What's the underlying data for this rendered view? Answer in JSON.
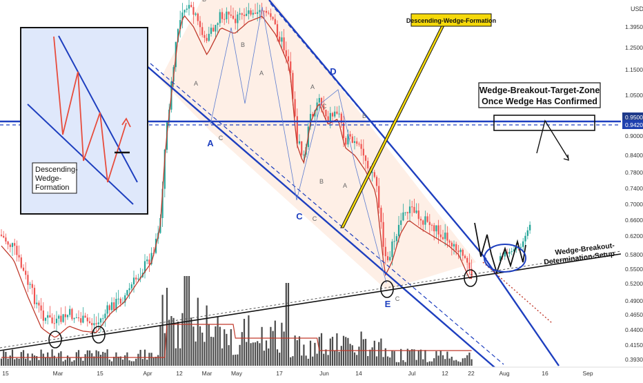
{
  "chart_data": {
    "type": "candlestick",
    "symbol_currency": "USD",
    "y_scale": "log",
    "ylim": [
      0.385,
      1.62
    ],
    "price_ticks": [
      "1.3950",
      "1.2500",
      "1.1500",
      "1.0500",
      "0.9500",
      "0.9420",
      "0.9000",
      "0.8400",
      "0.7800",
      "0.7400",
      "0.7000",
      "0.6600",
      "0.6200",
      "0.5800",
      "0.5500",
      "0.5200",
      "0.4900",
      "0.4650",
      "0.4400",
      "0.4150",
      "0.3930"
    ],
    "highlighted_levels": [
      {
        "label": "0.9500",
        "value": 0.95,
        "color": "#1e3a8a"
      },
      {
        "label": "0.9420",
        "value": 0.942,
        "color": "#1e40af"
      }
    ],
    "time_ticks": [
      "15",
      "Mar",
      "15",
      "Apr",
      "12",
      "Mar",
      "May",
      "17",
      "Jun",
      "14",
      "Jul",
      "12",
      "22",
      "Aug",
      "16",
      "Sep"
    ],
    "annotations": {
      "target_zone": "Wedge-Breakout-Target-Zone",
      "target_zone_line2": "Once Wedge Has Confirmed",
      "formation_label": "Descending-Wedge-Formation",
      "determination_label": "Wedge-Breakout-",
      "determination_label2": "Determination-Setup",
      "inset_label_1": "Descending-",
      "inset_label_2": "Wedge-",
      "inset_label_3": "Formation",
      "wave_labels": [
        "A",
        "B",
        "C",
        "D",
        "E"
      ],
      "small_labels": [
        "A",
        "B",
        "C"
      ]
    },
    "colors": {
      "up_candle": "#26a69a",
      "down_candle": "#ef5350",
      "moving_average": "#c0392b",
      "wedge_lines": "#1e3fbf",
      "wedge_fill": "#fde8dc",
      "volume": "#2b2b2b",
      "inset_zigzag": "#e74c3c",
      "formation_callout": "#f5d90a"
    }
  }
}
